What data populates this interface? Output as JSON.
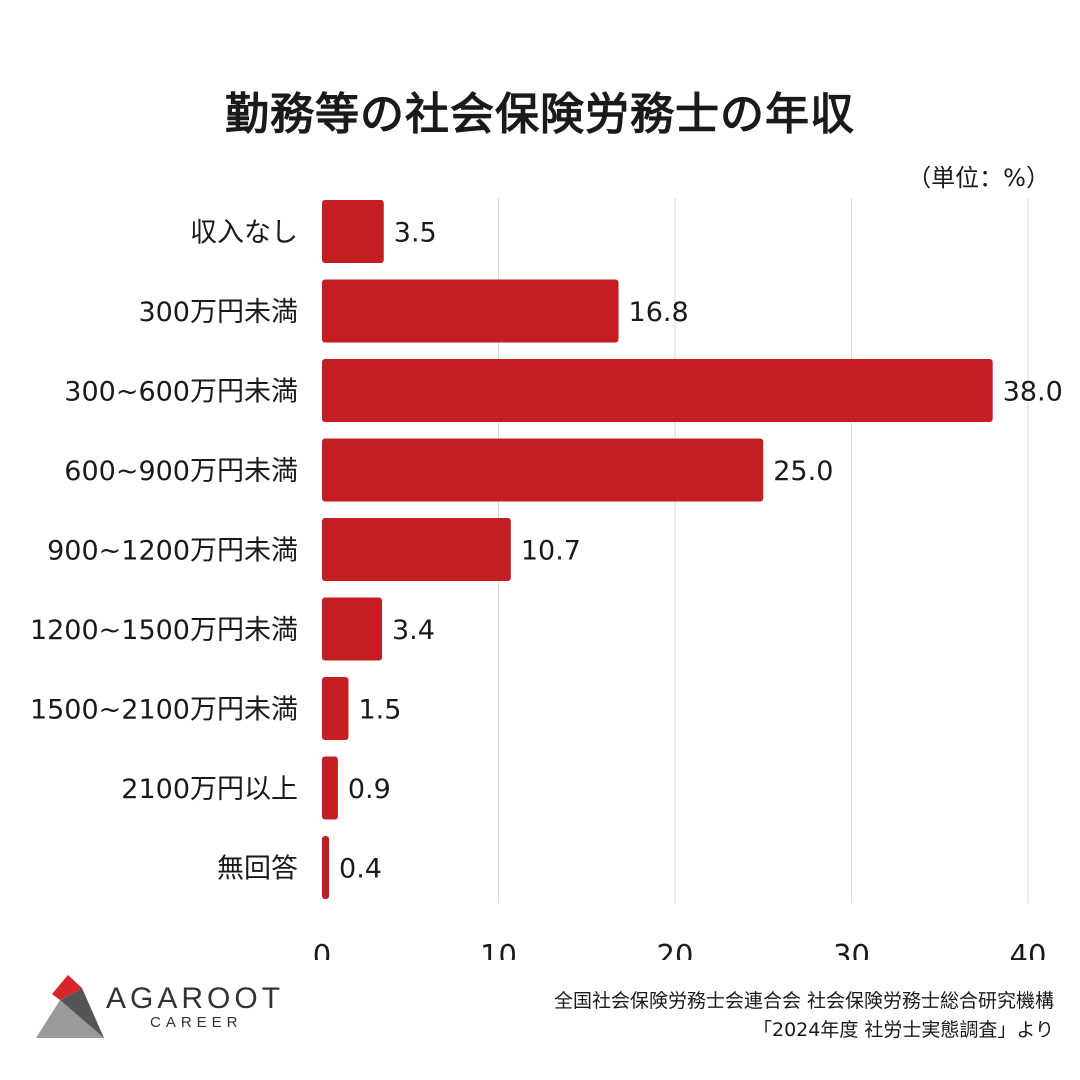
{
  "title": "勤務等の社会保険労務士の年収",
  "unit": "（単位：%）",
  "chart_data": {
    "type": "bar",
    "orientation": "horizontal",
    "categories": [
      "収入なし",
      "300万円未満",
      "300~600万円未満",
      "600~900万円未満",
      "900~1200万円未満",
      "1200~1500万円未満",
      "1500~2100万円未満",
      "2100万円以上",
      "無回答"
    ],
    "values": [
      3.5,
      16.8,
      38.0,
      25.0,
      10.7,
      3.4,
      1.5,
      0.9,
      0.4
    ],
    "value_labels": [
      "3.5",
      "16.8",
      "38.0",
      "25.0",
      "10.7",
      "3.4",
      "1.5",
      "0.9",
      "0.4"
    ],
    "xlim": [
      0,
      40
    ],
    "xticks": [
      "0",
      "10",
      "20",
      "30",
      "40"
    ],
    "bar_color": "#c41e22",
    "grid": true
  },
  "brand": {
    "name": "AGAROOT",
    "sub": "CAREER",
    "colors": {
      "red": "#d9232a",
      "dark": "#555555",
      "light": "#9a9a9a"
    }
  },
  "source": {
    "line1": "全国社会保険労務士会連合会 社会保険労務士総合研究機構",
    "line2": "「2024年度 社労士実態調査」より"
  }
}
